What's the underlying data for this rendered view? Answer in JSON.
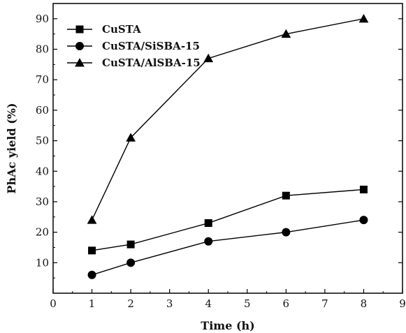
{
  "chart_data": {
    "type": "line",
    "title": "",
    "xlabel": "Time (h)",
    "ylabel": "PhAc yield (%)",
    "xlim": [
      0,
      9
    ],
    "ylim": [
      0,
      95
    ],
    "xticks": [
      0,
      1,
      2,
      3,
      4,
      5,
      6,
      7,
      8,
      9
    ],
    "yticks": [
      10,
      20,
      30,
      40,
      50,
      60,
      70,
      80,
      90
    ],
    "grid": false,
    "legend_position": "top-left",
    "x": [
      1,
      2,
      4,
      6,
      8
    ],
    "series": [
      {
        "name": "CuSTA",
        "marker": "square",
        "values": [
          14,
          16,
          23,
          32,
          34
        ]
      },
      {
        "name": "CuSTA/SiSBA-15",
        "marker": "circle",
        "values": [
          6,
          10,
          17,
          20,
          24
        ]
      },
      {
        "name": "CuSTA/AlSBA-15",
        "marker": "triangle",
        "values": [
          24,
          51,
          77,
          85,
          90
        ]
      }
    ]
  }
}
